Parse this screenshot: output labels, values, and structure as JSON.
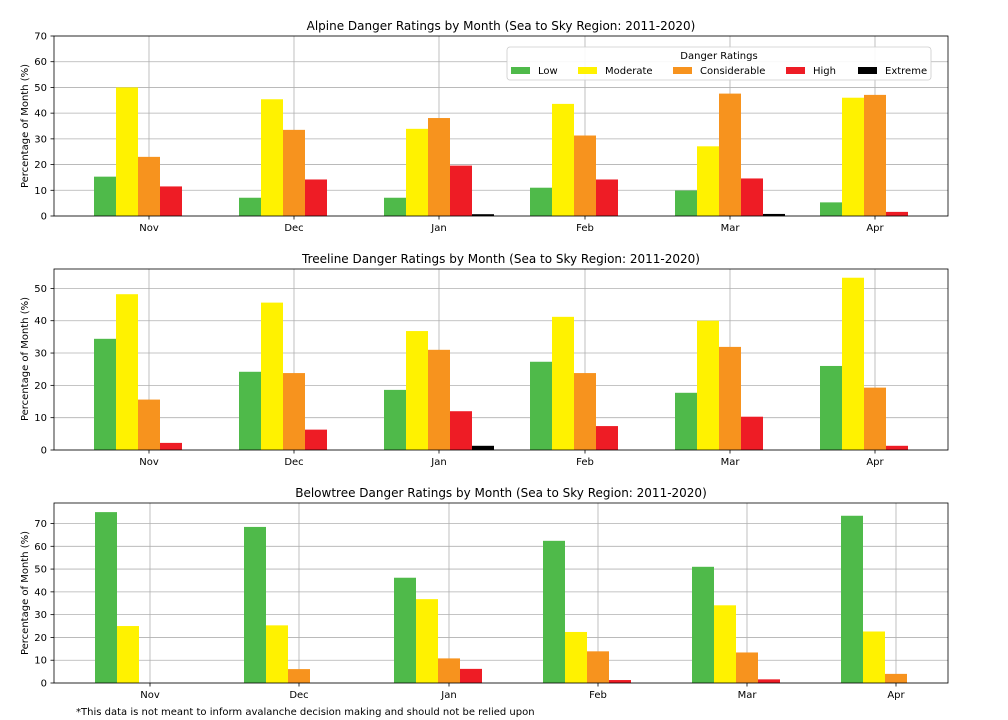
{
  "footnote": "*This data is not meant to inform avalanche decision making and should not be relied upon",
  "colors": {
    "Low": "#4fba4a",
    "Moderate": "#fff200",
    "Considerable": "#f7931e",
    "High": "#ee1c25",
    "Extreme": "#000000"
  },
  "legend": {
    "title": "Danger Ratings",
    "placement": "top-right (top panel)",
    "entries": [
      "Low",
      "Moderate",
      "Considerable",
      "High",
      "Extreme"
    ]
  },
  "chart_data": [
    {
      "type": "bar",
      "title": "Alpine Danger Ratings by Month (Sea to Sky Region: 2011-2020)",
      "xlabel": "",
      "ylabel": "Percentage of Month (%)",
      "ylim": [
        0,
        70
      ],
      "yticks": [
        0,
        10,
        20,
        30,
        40,
        50,
        60,
        70
      ],
      "grid": true,
      "categories": [
        "Nov",
        "Dec",
        "Jan",
        "Feb",
        "Mar",
        "Apr"
      ],
      "series": [
        {
          "name": "Low",
          "values": [
            15.3,
            7.1,
            7.1,
            11.0,
            9.9,
            5.3
          ]
        },
        {
          "name": "Moderate",
          "values": [
            50.0,
            45.4,
            33.9,
            43.6,
            27.1,
            46.0
          ]
        },
        {
          "name": "Considerable",
          "values": [
            23.0,
            33.5,
            38.1,
            31.3,
            47.6,
            47.1
          ]
        },
        {
          "name": "High",
          "values": [
            11.5,
            14.2,
            19.6,
            14.2,
            14.6,
            1.6
          ]
        },
        {
          "name": "Extreme",
          "values": [
            0,
            0,
            0.7,
            0,
            0.8,
            0
          ]
        }
      ]
    },
    {
      "type": "bar",
      "title": "Treeline Danger Ratings by Month (Sea to Sky Region: 2011-2020)",
      "xlabel": "",
      "ylabel": "Percentage of Month (%)",
      "ylim": [
        0,
        56
      ],
      "yticks": [
        0,
        10,
        20,
        30,
        40,
        50
      ],
      "grid": true,
      "categories": [
        "Nov",
        "Dec",
        "Jan",
        "Feb",
        "Mar",
        "Apr"
      ],
      "series": [
        {
          "name": "Low",
          "values": [
            34.4,
            24.2,
            18.6,
            27.3,
            17.7,
            26.0
          ]
        },
        {
          "name": "Moderate",
          "values": [
            48.2,
            45.6,
            36.8,
            41.2,
            40.0,
            53.3
          ]
        },
        {
          "name": "Considerable",
          "values": [
            15.6,
            23.8,
            31.0,
            23.8,
            31.9,
            19.3
          ]
        },
        {
          "name": "High",
          "values": [
            2.2,
            6.3,
            12.0,
            7.4,
            10.3,
            1.3
          ]
        },
        {
          "name": "Extreme",
          "values": [
            0,
            0,
            1.3,
            0,
            0,
            0
          ]
        }
      ]
    },
    {
      "type": "bar",
      "title": "Belowtree Danger Ratings by Month (Sea to Sky Region: 2011-2020)",
      "xlabel": "",
      "ylabel": "Percentage of Month (%)",
      "ylim": [
        0,
        79
      ],
      "yticks": [
        0,
        10,
        20,
        30,
        40,
        50,
        60,
        70
      ],
      "grid": true,
      "categories": [
        "Nov",
        "Dec",
        "Jan",
        "Feb",
        "Mar",
        "Apr"
      ],
      "series": [
        {
          "name": "Low",
          "values": [
            75.0,
            68.5,
            46.2,
            62.4,
            51.0,
            73.4
          ]
        },
        {
          "name": "Moderate",
          "values": [
            25.0,
            25.3,
            36.8,
            22.4,
            34.1,
            22.6
          ]
        },
        {
          "name": "Considerable",
          "values": [
            0,
            6.1,
            10.8,
            13.9,
            13.4,
            4.0
          ]
        },
        {
          "name": "High",
          "values": [
            0,
            0,
            6.2,
            1.3,
            1.6,
            0
          ]
        },
        {
          "name": "Extreme",
          "values": [
            0,
            0,
            0,
            0,
            0,
            0
          ]
        }
      ]
    }
  ]
}
